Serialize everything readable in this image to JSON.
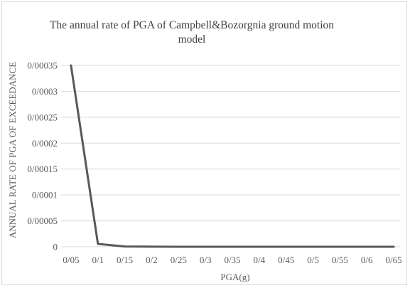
{
  "chart_data": {
    "type": "line",
    "title": "The annual rate of PGA of Campbell&Bozorgnia ground motion model",
    "xlabel": "PGA(g)",
    "ylabel": "ANNUAL RATE OF PGA OF EXCEEDANCE",
    "categories": [
      "0/05",
      "0/1",
      "0/15",
      "0/2",
      "0/25",
      "0/3",
      "0/35",
      "0/4",
      "0/45",
      "0/5",
      "0/55",
      "0/6",
      "0/65"
    ],
    "series": [
      {
        "values": [
          0.00035,
          5.5e-06,
          5e-07,
          1e-07,
          5e-08,
          2e-08,
          1e-08,
          5e-09,
          3e-09,
          2e-09,
          1e-09,
          1e-09,
          5e-10
        ],
        "color": "#595959"
      }
    ],
    "yticks": [
      0,
      5e-05,
      0.0001,
      0.00015,
      0.0002,
      0.00025,
      0.0003,
      0.00035
    ],
    "ytick_labels": [
      "0",
      "0/00005",
      "0/0001",
      "0/00015",
      "0/0002",
      "0/00025",
      "0/0003",
      "0/00035"
    ],
    "ylim": [
      0,
      0.00035
    ],
    "grid": true,
    "gridline_color": "#d9d9d9",
    "legend": "none"
  }
}
